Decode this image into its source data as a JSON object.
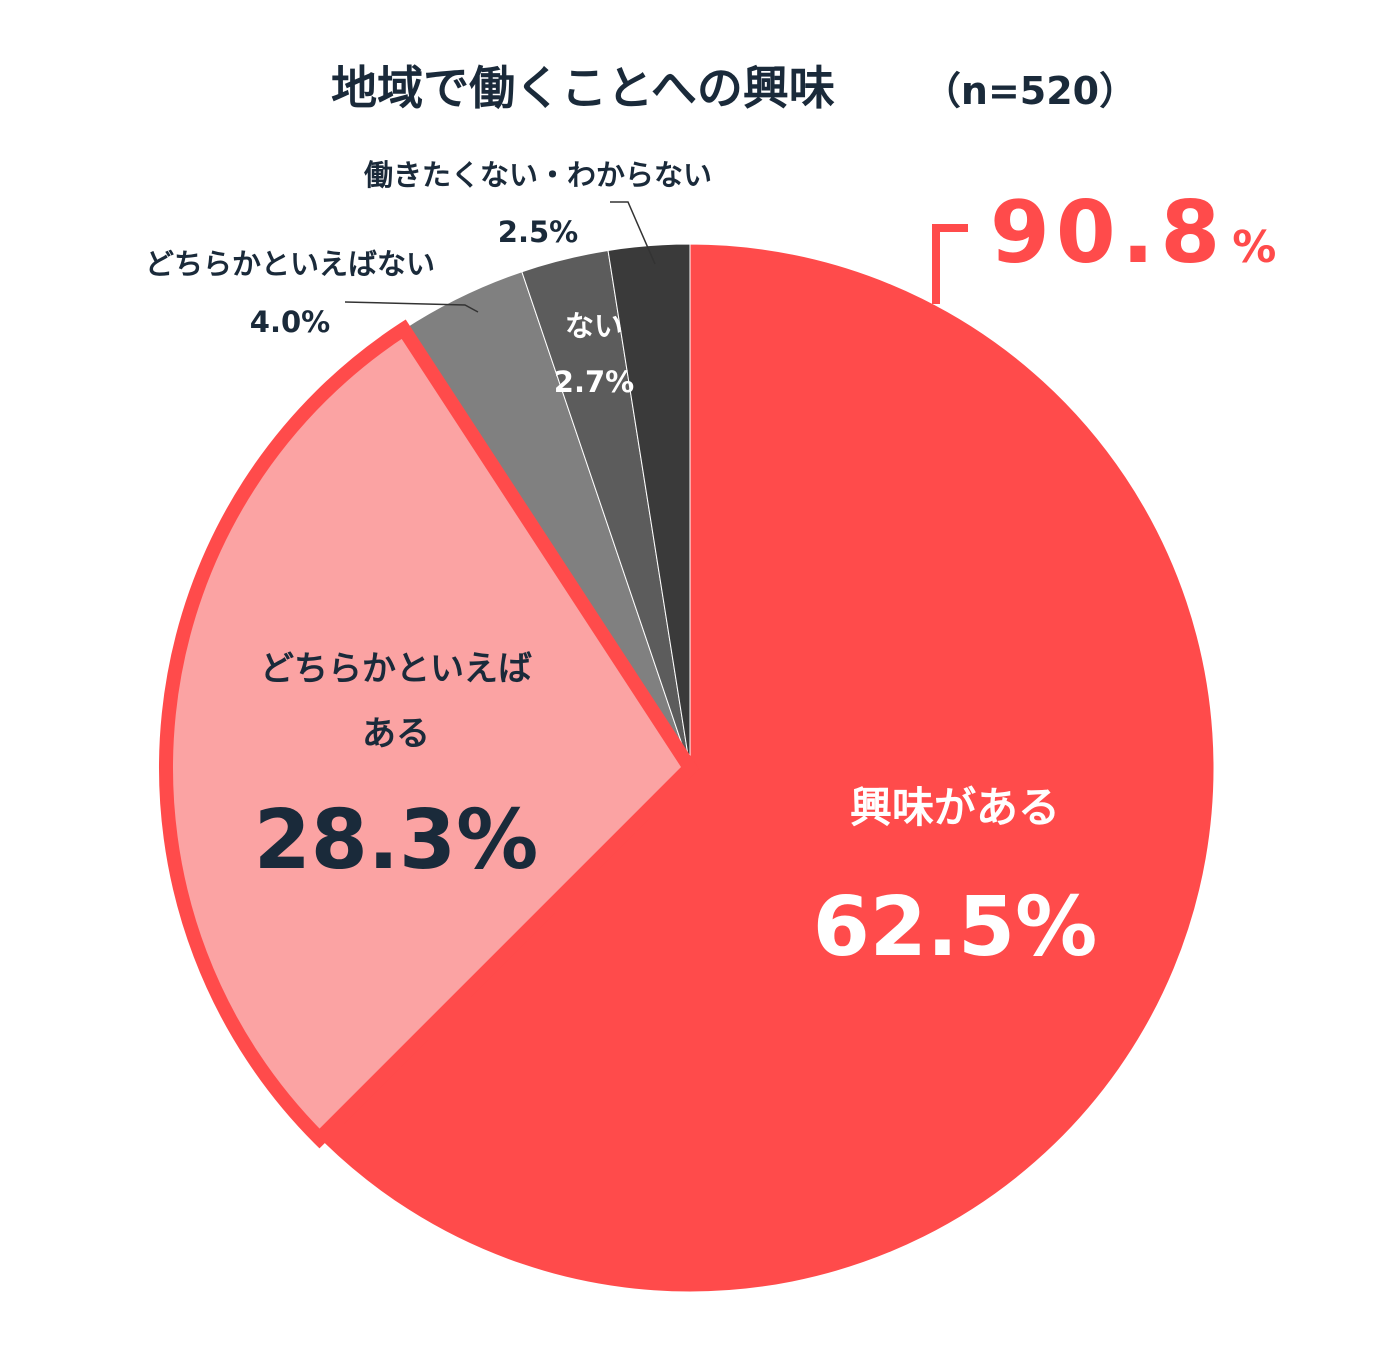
{
  "chart_data": {
    "type": "pie",
    "title": "地域で働くことへの興味",
    "sample_size_label": "（n=520）",
    "start_angle_deg": 0,
    "direction": "clockwise",
    "slices": [
      {
        "label": "興味がある",
        "value": 62.5,
        "value_label": "62.5%",
        "color": "#FF4B4B"
      },
      {
        "label": "どちらかといえば",
        "label2": "ある",
        "value": 28.3,
        "value_label": "28.3%",
        "color": "#FBA3A3"
      },
      {
        "label": "どちらかといえばない",
        "value": 4.0,
        "value_label": "4.0%",
        "color": "#808080"
      },
      {
        "label": "ない",
        "value": 2.7,
        "value_label": "2.7%",
        "color": "#5C5C5C"
      },
      {
        "label": "働きたくない・わからない",
        "value": 2.5,
        "value_label": "2.5%",
        "color": "#3A3A3A"
      }
    ],
    "highlight_total": {
      "value": 90.8,
      "number_label": "90.8",
      "unit_label": "%",
      "color": "#FF4B4B"
    },
    "text_color": "#1A2A3A"
  }
}
